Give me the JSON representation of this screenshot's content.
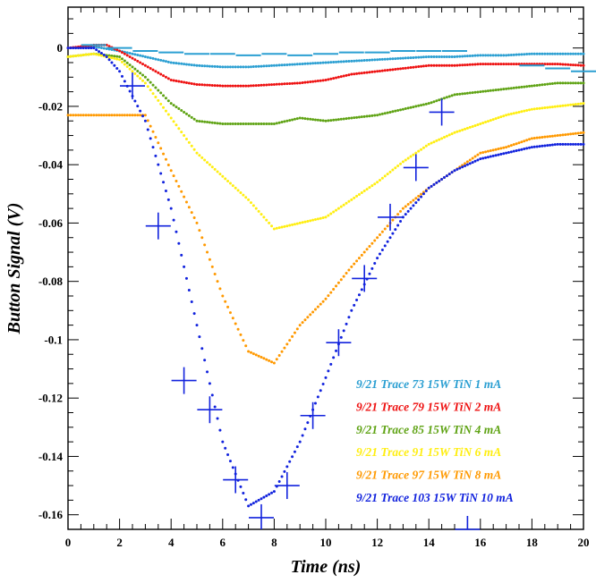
{
  "chart_data": {
    "type": "scatter",
    "xlabel": "Time (ns)",
    "ylabel": "Button Signal (V)",
    "xlim": [
      0,
      20
    ],
    "ylim": [
      -0.165,
      0.014
    ],
    "x_ticks": [
      0,
      2,
      4,
      6,
      8,
      10,
      12,
      14,
      16,
      18,
      20
    ],
    "x_tick_labels": [
      "0",
      "2",
      "4",
      "6",
      "8",
      "10",
      "12",
      "14",
      "16",
      "18",
      "20"
    ],
    "y_ticks": [
      0,
      -0.02,
      -0.04,
      -0.06,
      -0.08,
      -0.1,
      -0.12,
      -0.14,
      -0.16
    ],
    "y_tick_labels": [
      "0",
      "-0.02",
      "-0.04",
      "-0.06",
      "-0.08",
      "-0.1",
      "-0.12",
      "-0.14",
      "-0.16"
    ],
    "grid": false,
    "legend_position": "bottom-right",
    "series": [
      {
        "name": "9/21 Trace 73 15W TiN 1 mA",
        "color": "#2b9fd2",
        "points": [
          [
            0,
            0
          ],
          [
            1,
            0.0005
          ],
          [
            2,
            -0.001
          ],
          [
            3,
            -0.003
          ],
          [
            4,
            -0.005
          ],
          [
            5,
            -0.006
          ],
          [
            6,
            -0.0065
          ],
          [
            7,
            -0.0065
          ],
          [
            8,
            -0.006
          ],
          [
            9,
            -0.0055
          ],
          [
            10,
            -0.005
          ],
          [
            11,
            -0.0045
          ],
          [
            12,
            -0.004
          ],
          [
            13,
            -0.0035
          ],
          [
            14,
            -0.003
          ],
          [
            15,
            -0.003
          ],
          [
            16,
            -0.0025
          ],
          [
            17,
            -0.0025
          ],
          [
            18,
            -0.002
          ],
          [
            19,
            -0.002
          ],
          [
            20,
            -0.002
          ]
        ]
      },
      {
        "name": "9/21 Trace 79 15W TiN 2 mA",
        "color": "#ee1111",
        "points": [
          [
            0,
            0
          ],
          [
            1,
            0.001
          ],
          [
            1.5,
            0.001
          ],
          [
            2,
            -0.001
          ],
          [
            3,
            -0.006
          ],
          [
            4,
            -0.011
          ],
          [
            5,
            -0.0125
          ],
          [
            6,
            -0.013
          ],
          [
            7,
            -0.013
          ],
          [
            8,
            -0.0125
          ],
          [
            9,
            -0.012
          ],
          [
            10,
            -0.011
          ],
          [
            11,
            -0.009
          ],
          [
            12,
            -0.008
          ],
          [
            13,
            -0.007
          ],
          [
            14,
            -0.006
          ],
          [
            15,
            -0.006
          ],
          [
            16,
            -0.0055
          ],
          [
            17,
            -0.0055
          ],
          [
            18,
            -0.0055
          ],
          [
            19,
            -0.0055
          ],
          [
            20,
            -0.006
          ]
        ]
      },
      {
        "name": "9/21 Trace 85 15W TiN 4 mA",
        "color": "#5fa314",
        "points": [
          [
            0,
            -0.003
          ],
          [
            1,
            -0.002
          ],
          [
            2,
            -0.003
          ],
          [
            3,
            -0.01
          ],
          [
            4,
            -0.019
          ],
          [
            5,
            -0.025
          ],
          [
            6,
            -0.026
          ],
          [
            7,
            -0.026
          ],
          [
            8,
            -0.026
          ],
          [
            9,
            -0.024
          ],
          [
            10,
            -0.025
          ],
          [
            11,
            -0.024
          ],
          [
            12,
            -0.023
          ],
          [
            13,
            -0.021
          ],
          [
            14,
            -0.019
          ],
          [
            15,
            -0.016
          ],
          [
            16,
            -0.015
          ],
          [
            17,
            -0.014
          ],
          [
            18,
            -0.013
          ],
          [
            19,
            -0.012
          ],
          [
            20,
            -0.012
          ]
        ]
      },
      {
        "name": "9/21 Trace 91 15W TiN 6 mA",
        "color": "#ffee11",
        "points": [
          [
            0,
            -0.003
          ],
          [
            1,
            -0.002
          ],
          [
            2,
            -0.004
          ],
          [
            3,
            -0.012
          ],
          [
            4,
            -0.024
          ],
          [
            5,
            -0.036
          ],
          [
            6,
            -0.044
          ],
          [
            7,
            -0.052
          ],
          [
            8,
            -0.062
          ],
          [
            9,
            -0.06
          ],
          [
            10,
            -0.058
          ],
          [
            11,
            -0.052
          ],
          [
            12,
            -0.046
          ],
          [
            13,
            -0.039
          ],
          [
            14,
            -0.033
          ],
          [
            15,
            -0.029
          ],
          [
            16,
            -0.026
          ],
          [
            17,
            -0.023
          ],
          [
            18,
            -0.021
          ],
          [
            19,
            -0.02
          ],
          [
            20,
            -0.019
          ]
        ]
      },
      {
        "name": "9/21 Trace 97 15W TiN 8 mA",
        "color": "#ff9900",
        "points": [
          [
            0,
            -0.023
          ],
          [
            1,
            -0.023
          ],
          [
            2,
            -0.023
          ],
          [
            3,
            -0.023
          ],
          [
            4,
            -0.042
          ],
          [
            5,
            -0.06
          ],
          [
            6,
            -0.085
          ],
          [
            7,
            -0.104
          ],
          [
            8,
            -0.108
          ],
          [
            9,
            -0.095
          ],
          [
            10,
            -0.086
          ],
          [
            11,
            -0.075
          ],
          [
            12,
            -0.065
          ],
          [
            13,
            -0.055
          ],
          [
            14,
            -0.048
          ],
          [
            15,
            -0.042
          ],
          [
            16,
            -0.036
          ],
          [
            17,
            -0.034
          ],
          [
            18,
            -0.031
          ],
          [
            19,
            -0.03
          ],
          [
            20,
            -0.029
          ]
        ]
      },
      {
        "name": "9/21 Trace 103 15W TiN 10 mA",
        "color": "#1122dd",
        "points": [
          [
            0,
            0
          ],
          [
            1,
            0
          ],
          [
            1.5,
            -0.003
          ],
          [
            2,
            -0.008
          ],
          [
            3,
            -0.025
          ],
          [
            4,
            -0.055
          ],
          [
            5,
            -0.095
          ],
          [
            6,
            -0.135
          ],
          [
            7,
            -0.157
          ],
          [
            8,
            -0.152
          ],
          [
            9,
            -0.135
          ],
          [
            10,
            -0.113
          ],
          [
            11,
            -0.09
          ],
          [
            12,
            -0.072
          ],
          [
            13,
            -0.058
          ],
          [
            14,
            -0.048
          ],
          [
            15,
            -0.042
          ],
          [
            16,
            -0.038
          ],
          [
            17,
            -0.036
          ],
          [
            18,
            -0.034
          ],
          [
            19,
            -0.033
          ],
          [
            20,
            -0.033
          ]
        ]
      }
    ],
    "crosses": {
      "color": "#1122dd",
      "points": [
        [
          2.5,
          -0.013
        ],
        [
          3.5,
          -0.061
        ],
        [
          4.5,
          -0.114
        ],
        [
          5.5,
          -0.124
        ],
        [
          6.5,
          -0.148
        ],
        [
          7.5,
          -0.161
        ],
        [
          8.5,
          -0.15
        ],
        [
          9.5,
          -0.126
        ],
        [
          10.5,
          -0.101
        ],
        [
          11.5,
          -0.079
        ],
        [
          12.5,
          -0.058
        ],
        [
          13.5,
          -0.041
        ],
        [
          14.5,
          -0.022
        ],
        [
          15.5,
          -0.165
        ]
      ]
    },
    "dashes": {
      "color": "#2b9fd2",
      "points": [
        [
          1,
          0.001
        ],
        [
          2,
          0
        ],
        [
          3,
          -0.001
        ],
        [
          4,
          -0.0015
        ],
        [
          5,
          -0.002
        ],
        [
          6,
          -0.002
        ],
        [
          7,
          -0.0025
        ],
        [
          8,
          -0.002
        ],
        [
          9,
          -0.0025
        ],
        [
          10,
          -0.002
        ],
        [
          11,
          -0.0015
        ],
        [
          12,
          -0.0015
        ],
        [
          13,
          -0.001
        ],
        [
          14,
          -0.001
        ],
        [
          15,
          -0.001
        ],
        [
          18,
          -0.006
        ],
        [
          19,
          -0.007
        ],
        [
          20,
          -0.008
        ]
      ]
    }
  }
}
